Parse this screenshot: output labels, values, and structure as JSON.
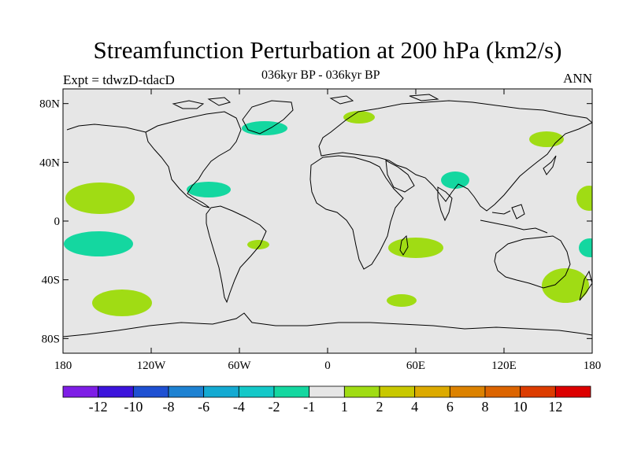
{
  "title": "Streamfunction Perturbation at 200 hPa (km2/s)",
  "experiment_label": "Expt = tdwzD-tdacD",
  "period_label": "036kyr BP - 036kyr BP",
  "season_label": "ANN",
  "map": {
    "projection": "cylindrical equidistant",
    "lon_range": [
      -180,
      180
    ],
    "lat_range": [
      -90,
      90
    ],
    "ocean_fill": "#e6e6e6",
    "coast_color": "#000000",
    "lat_ticks": [
      {
        "value": 80,
        "label": "80N"
      },
      {
        "value": 40,
        "label": "40N"
      },
      {
        "value": 0,
        "label": "0"
      },
      {
        "value": -40,
        "label": "40S"
      },
      {
        "value": -80,
        "label": "80S"
      }
    ],
    "lon_ticks": [
      {
        "value": -180,
        "label": "180"
      },
      {
        "value": -120,
        "label": "120W"
      },
      {
        "value": -60,
        "label": "60W"
      },
      {
        "value": 0,
        "label": "0"
      },
      {
        "value": 60,
        "label": "60E"
      },
      {
        "value": 120,
        "label": "120E"
      },
      {
        "value": 180,
        "label": "180"
      }
    ]
  },
  "colorbar": {
    "colors": [
      "#7e1ee6",
      "#3c14dc",
      "#1e50d2",
      "#1e82d2",
      "#14aad2",
      "#14c8c8",
      "#14d7a0",
      "#e6e6e6",
      "#a0dc14",
      "#c8c800",
      "#dcaa00",
      "#dc8200",
      "#dc6400",
      "#dc3c00",
      "#dc0000"
    ],
    "labels": [
      "-12",
      "-10",
      "-8",
      "-6",
      "-4",
      "-2",
      "-1",
      "1",
      "2",
      "4",
      "6",
      "8",
      "10",
      "12"
    ]
  },
  "chart_data": {
    "type": "heatmap",
    "variable": "Streamfunction Perturbation at 200 hPa",
    "units": "km2/s",
    "regions": [
      {
        "lon": -158,
        "lat": 13,
        "level": "-1 to 1 above",
        "color": "#a0dc14"
      },
      {
        "lon": -155,
        "lat": -15,
        "level": "-2 to -1",
        "color": "#14d7a0"
      },
      {
        "lon": -130,
        "lat": -52,
        "level": "1 to 2",
        "color": "#a0dc14"
      },
      {
        "lon": -80,
        "lat": 19,
        "level": "-2 to -1",
        "color": "#14d7a0"
      },
      {
        "lon": -40,
        "lat": -16,
        "level": "1 to 2",
        "color": "#a0dc14"
      },
      {
        "lon": -35,
        "lat": 64,
        "level": "-2 to -1",
        "color": "#14d7a0"
      },
      {
        "lon": 20,
        "lat": 67,
        "level": "1 to 2",
        "color": "#a0dc14"
      },
      {
        "lon": 50,
        "lat": -51,
        "level": "1 to 2",
        "color": "#a0dc14"
      },
      {
        "lon": 58,
        "lat": -17,
        "level": "1 to 2",
        "color": "#a0dc14"
      },
      {
        "lon": 87,
        "lat": 26,
        "level": "-2 to -1",
        "color": "#14d7a0"
      },
      {
        "lon": 160,
        "lat": 54,
        "level": "1 to 2",
        "color": "#a0dc14"
      },
      {
        "lon": 170,
        "lat": 16,
        "level": "1 to 2",
        "color": "#a0dc14"
      },
      {
        "lon": 171,
        "lat": -17,
        "level": "-2 to -1",
        "color": "#14d7a0"
      },
      {
        "lon": 158,
        "lat": -43,
        "level": "1 to 2",
        "color": "#a0dc14"
      }
    ]
  }
}
